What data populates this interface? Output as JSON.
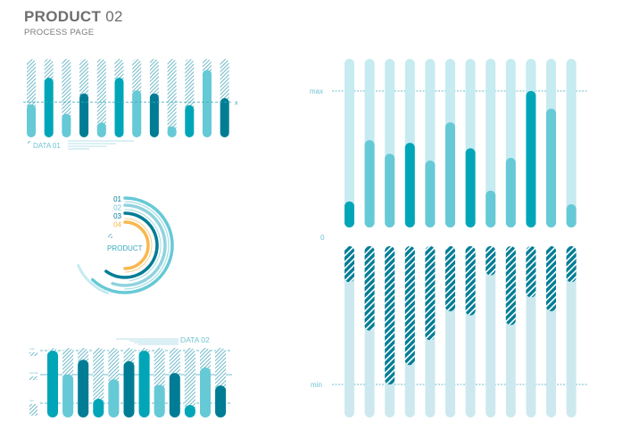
{
  "header": {
    "title_bold": "PRODUCT",
    "title_num": "02",
    "subtitle": "PROCESS PAGE"
  },
  "colors": {
    "light": "#66c9d6",
    "medium": "#00a6b8",
    "dark": "#007d95",
    "pale": "#cde9ef",
    "pale2": "#c6ebf1",
    "orange": "#f8b84e",
    "hatch": "#007d95"
  },
  "chart_data": [
    {
      "type": "bar",
      "name_label": "DATA 01",
      "marker": "x",
      "values": [
        0.42,
        0.76,
        0.3,
        0.56,
        0.19,
        0.76,
        0.6,
        0.56,
        0.14,
        0.41,
        0.86,
        0.5
      ],
      "color_keys": [
        "light",
        "medium",
        "light",
        "dark",
        "light",
        "medium",
        "light",
        "dark",
        "light",
        "medium",
        "light",
        "dark"
      ],
      "ylim": [
        0,
        1
      ],
      "reference_line": 0.45
    },
    {
      "type": "pie",
      "center_label": "PRODUCT",
      "legend": [
        {
          "label": "01",
          "color_key": "light",
          "value": 0.62
        },
        {
          "label": "02",
          "color_key": "light",
          "value": 0.55
        },
        {
          "label": "03",
          "color_key": "dark",
          "value": 0.6
        },
        {
          "label": "04",
          "color_key": "orange",
          "value": 0.5
        }
      ]
    },
    {
      "type": "bar",
      "name_label": "DATA 02",
      "axis_labels": [
        "max",
        "normal",
        "min"
      ],
      "values": [
        0.96,
        0.62,
        0.83,
        0.27,
        0.55,
        0.81,
        0.96,
        0.47,
        0.64,
        0.18,
        0.72,
        0.46
      ],
      "color_keys": [
        "medium",
        "light",
        "dark",
        "medium",
        "light",
        "dark",
        "medium",
        "light",
        "dark",
        "medium",
        "light",
        "dark"
      ],
      "ylim": [
        0,
        1
      ]
    },
    {
      "type": "bar",
      "axis_labels": {
        "max": "max",
        "zero": "0",
        "min": "min"
      },
      "positive_values": [
        0.19,
        0.64,
        0.54,
        0.62,
        0.49,
        0.77,
        0.58,
        0.27,
        0.51,
        1.0,
        0.87,
        0.17
      ],
      "positive_color_keys": [
        "medium",
        "light",
        "light",
        "medium",
        "light",
        "light",
        "medium",
        "light",
        "light",
        "medium",
        "light",
        "light"
      ],
      "negative_values": [
        -0.26,
        -0.61,
        -1.0,
        -0.86,
        -0.68,
        -0.47,
        -0.5,
        -0.21,
        -0.57,
        -0.37,
        -0.47,
        -0.26
      ],
      "ylim": [
        -1,
        1
      ]
    }
  ]
}
